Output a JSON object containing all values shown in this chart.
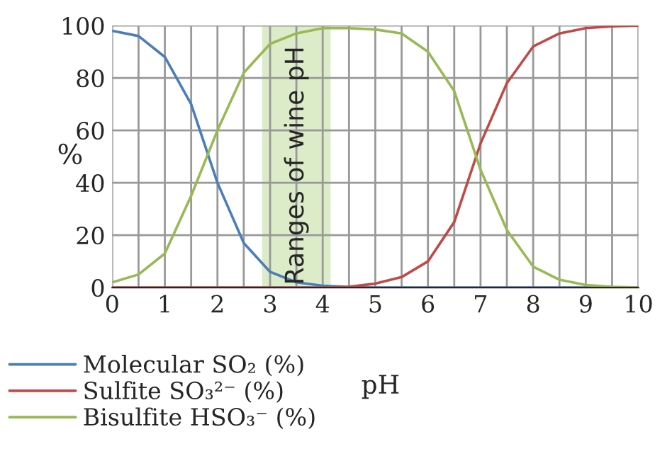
{
  "chart_data": {
    "type": "line",
    "xlabel": "pH",
    "ylabel": "%",
    "x": [
      0,
      0.5,
      1,
      1.5,
      2,
      2.5,
      3,
      3.5,
      4,
      4.5,
      5,
      5.5,
      6,
      6.5,
      7,
      7.5,
      8,
      8.5,
      9,
      9.5,
      10
    ],
    "series": [
      {
        "name": "Molecular SO₂ (%)",
        "color": "#4a7ebb",
        "values": [
          98,
          96,
          88,
          70,
          40,
          17,
          6,
          2,
          0.7,
          0.2,
          0,
          0,
          0,
          0,
          0,
          0,
          0,
          0,
          0,
          0,
          0
        ]
      },
      {
        "name": "Sulfite SO₃²⁻ (%)",
        "color": "#be4b48",
        "values": [
          0,
          0,
          0,
          0,
          0,
          0,
          0,
          0,
          0,
          0.3,
          1.5,
          4,
          10,
          25,
          55,
          78,
          92,
          97,
          99,
          99.7,
          100
        ]
      },
      {
        "name": "Bisulfite HSO₃⁻ (%)",
        "color": "#98b954",
        "values": [
          2,
          5,
          13,
          35,
          60,
          82,
          93,
          97,
          99,
          99,
          98.5,
          97,
          90,
          75,
          45,
          22,
          8,
          3,
          1,
          0.3,
          0
        ]
      }
    ],
    "xlim": [
      0,
      10
    ],
    "ylim": [
      0,
      100
    ],
    "xticks": [
      0,
      {
        "value": 0.5,
        "label": null
      },
      1,
      {
        "value": 1.5,
        "label": null
      },
      2,
      {
        "value": 2.5,
        "label": null
      },
      3,
      {
        "value": 3.5,
        "label": null
      },
      4,
      {
        "value": 4.5,
        "label": null
      },
      5,
      {
        "value": 5.5,
        "label": null
      },
      6,
      {
        "value": 6.5,
        "label": null
      },
      7,
      {
        "value": 7.5,
        "label": null
      },
      8,
      {
        "value": 8.5,
        "label": null
      },
      9,
      {
        "value": 9.5,
        "label": null
      },
      10
    ],
    "yticks": [
      0,
      20,
      40,
      60,
      80,
      100
    ],
    "bands": [
      {
        "axis": "x",
        "from": 2.85,
        "to": 4.15,
        "label": "Ranges of wine pH",
        "color": "#dcebc8"
      }
    ],
    "grid": true,
    "legend": "bottom left",
    "marker": "none",
    "line_style": "solid"
  }
}
